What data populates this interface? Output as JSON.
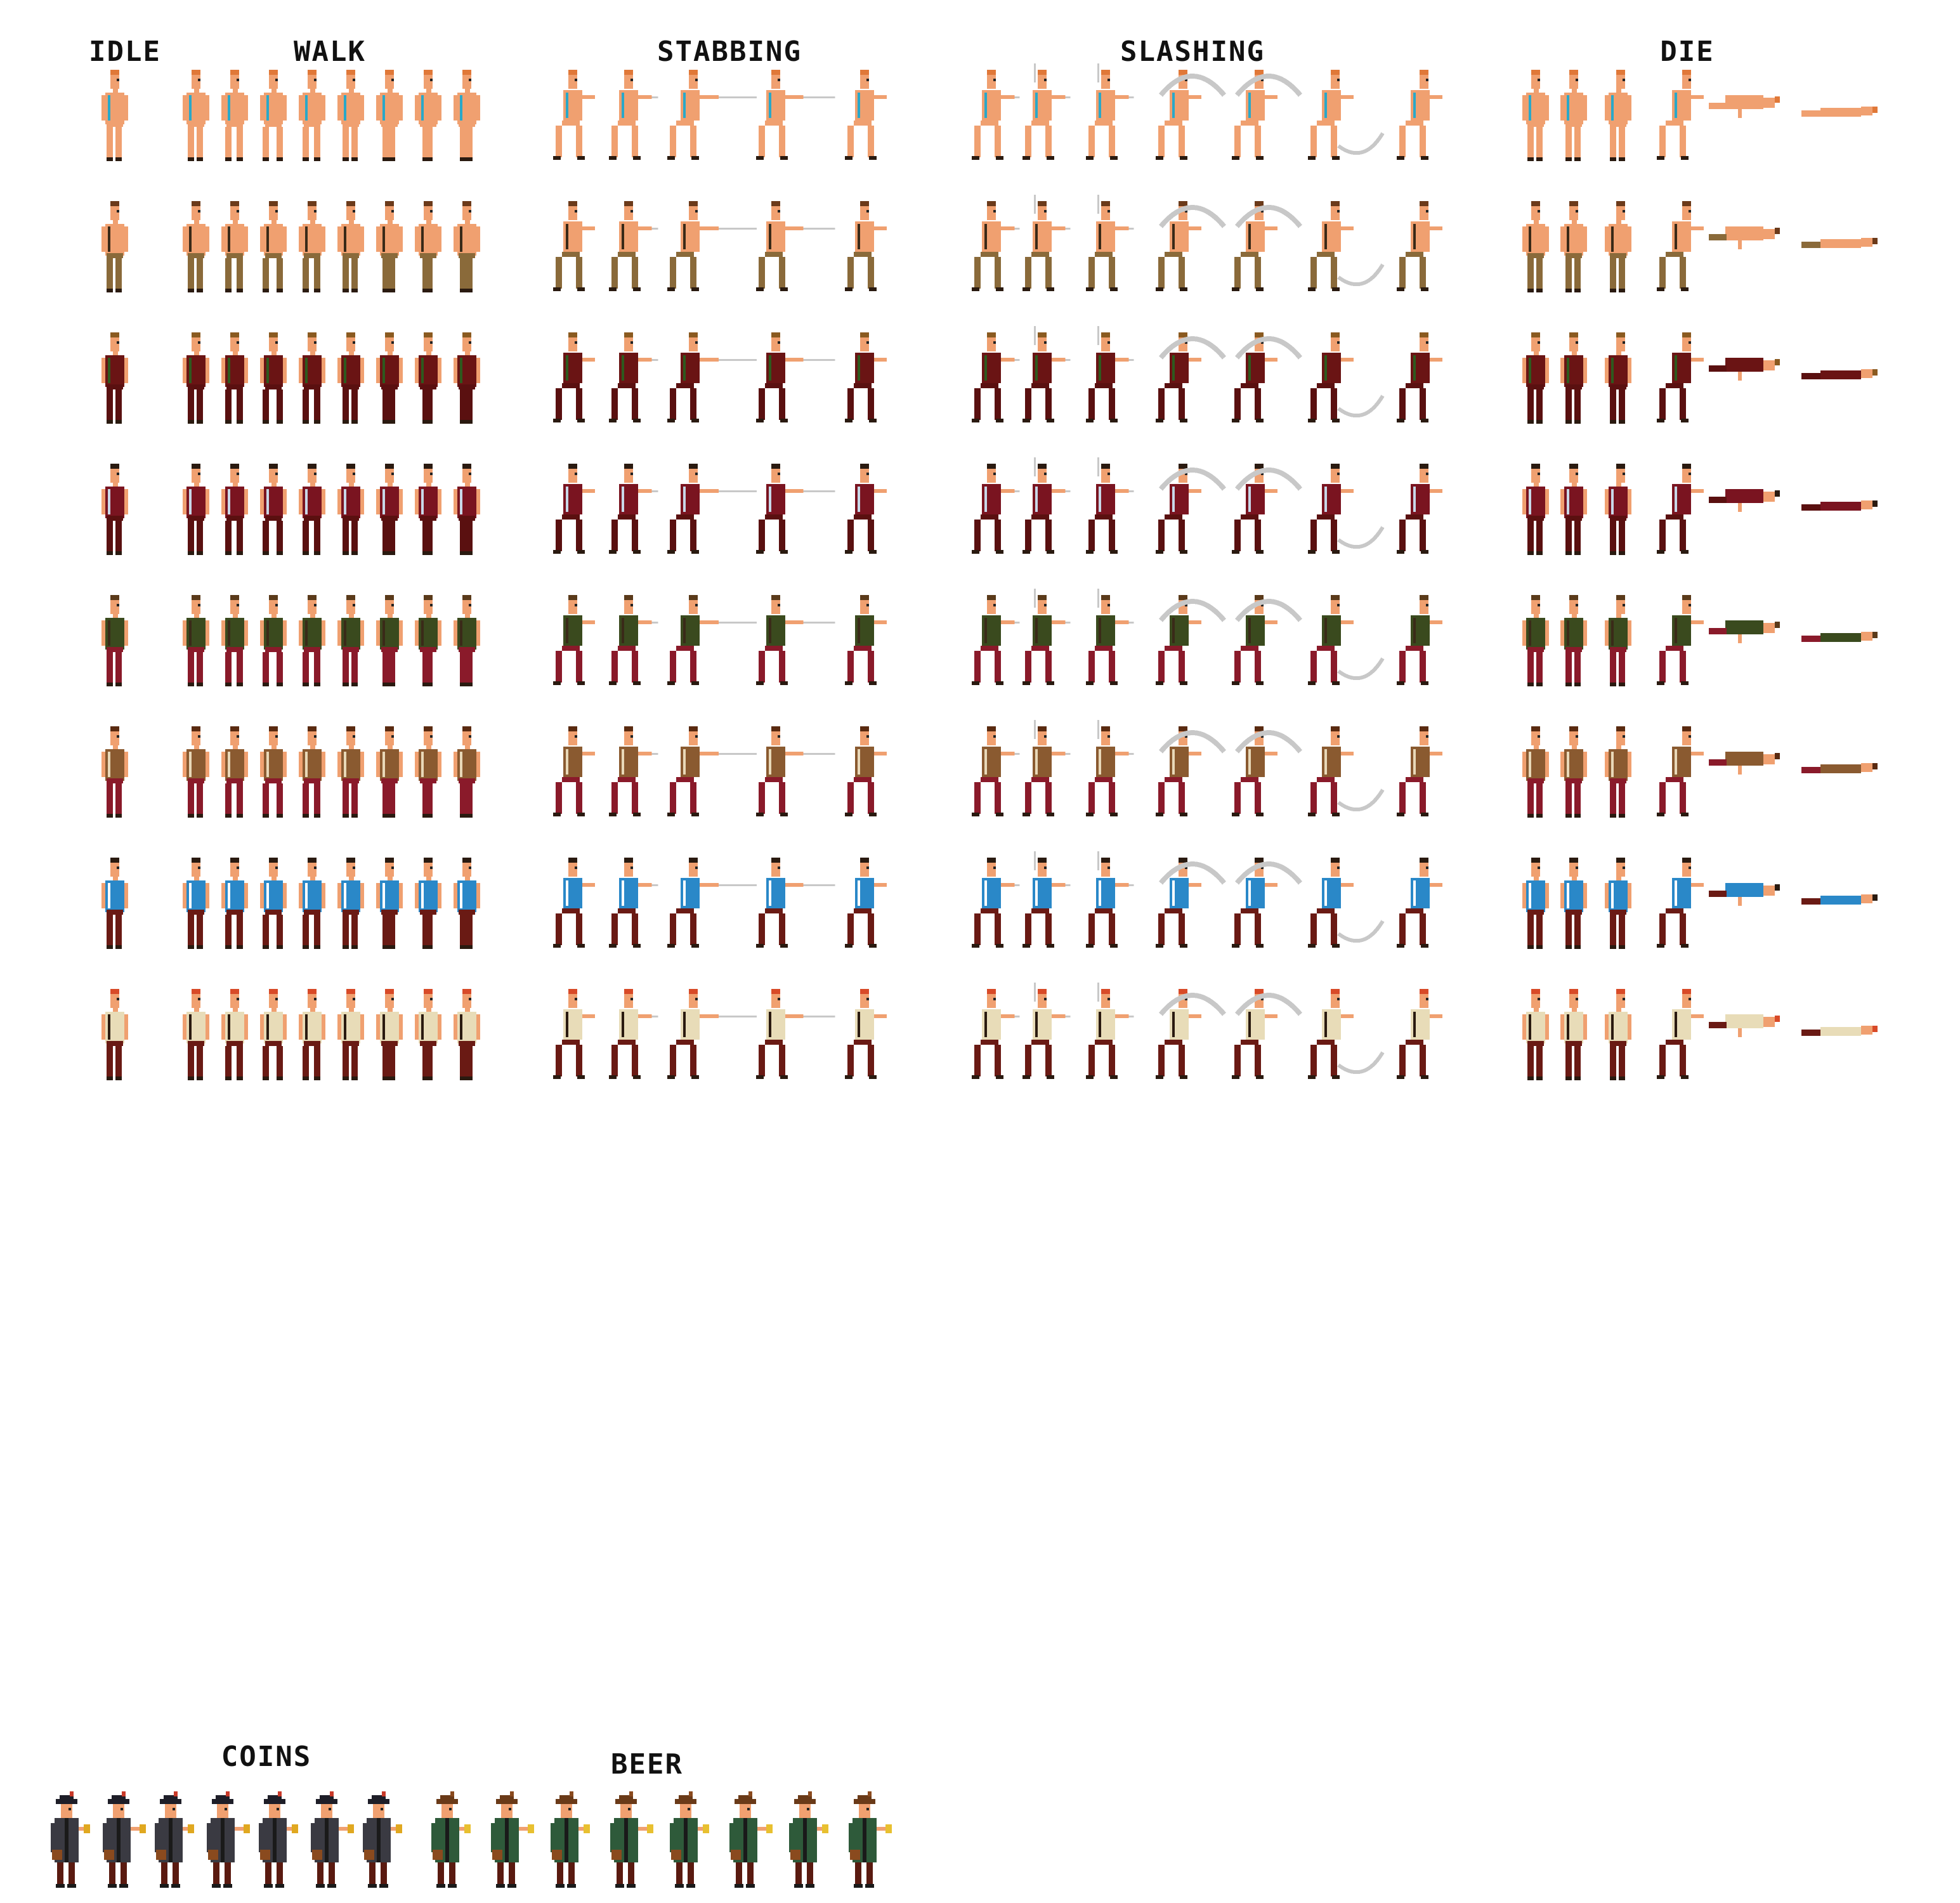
{
  "sheet": {
    "headers": {
      "idle": "IDLE",
      "walk": "WALK",
      "stabbing": "STABBING",
      "slashing": "SLASHING",
      "die": "DIE",
      "coins": "COINS",
      "beer": "BEER"
    },
    "animations": [
      {
        "key": "idle",
        "frames": 1
      },
      {
        "key": "walk",
        "frames": 8
      },
      {
        "key": "stabbing",
        "frames": 5
      },
      {
        "key": "slashing",
        "frames": 7
      },
      {
        "key": "die",
        "frames": 6
      }
    ],
    "characters": [
      {
        "variant": "base-body",
        "skin": "#f0a070",
        "top": "#f0a070",
        "pants": "#f0a070",
        "hair": "#e07838",
        "accent": "#2aa8c8"
      },
      {
        "variant": "loincloth",
        "skin": "#f0a070",
        "top": "#f0a070",
        "pants": "#8a6a3a",
        "hair": "#6b3a1a",
        "accent": "#3a2a18"
      },
      {
        "variant": "captain-coat",
        "skin": "#f0a070",
        "top": "#6a1414",
        "pants": "#5a1010",
        "hair": "#8a5a20",
        "accent": "#2e5a1e"
      },
      {
        "variant": "red-coat",
        "skin": "#f0a070",
        "top": "#7a1420",
        "pants": "#5a1010",
        "hair": "#2a1a10",
        "accent": "#c8d8e8"
      },
      {
        "variant": "green-vest",
        "skin": "#f0a070",
        "top": "#3a4a1e",
        "pants": "#8a1a2a",
        "hair": "#5a3a1a",
        "accent": "#3a2a18"
      },
      {
        "variant": "brown-vest",
        "skin": "#f0a070",
        "top": "#8a5a30",
        "pants": "#8a1a2a",
        "hair": "#5a2a10",
        "accent": "#e8d8b8"
      },
      {
        "variant": "striped-shirt",
        "skin": "#f0a070",
        "top": "#2a88c8",
        "pants": "#6a1a14",
        "hair": "#2a1a10",
        "accent": "#ffffff"
      },
      {
        "variant": "linen-shirt",
        "skin": "#f0a070",
        "top": "#e8dcb8",
        "pants": "#6a1a14",
        "hair": "#d84a28",
        "accent": "#2a1a10"
      }
    ],
    "npcs": [
      {
        "key": "coins",
        "frames": 7,
        "coat": "#3a3a42",
        "hat": "#1e1e28",
        "accent": "#c83a2a",
        "prop": "#e0a820"
      },
      {
        "key": "beer",
        "frames": 8,
        "coat": "#2e5a3a",
        "hat": "#6a3a18",
        "accent": "#8a4a1e",
        "prop": "#e8c030"
      }
    ],
    "effect_color": "#c8c8c8"
  }
}
